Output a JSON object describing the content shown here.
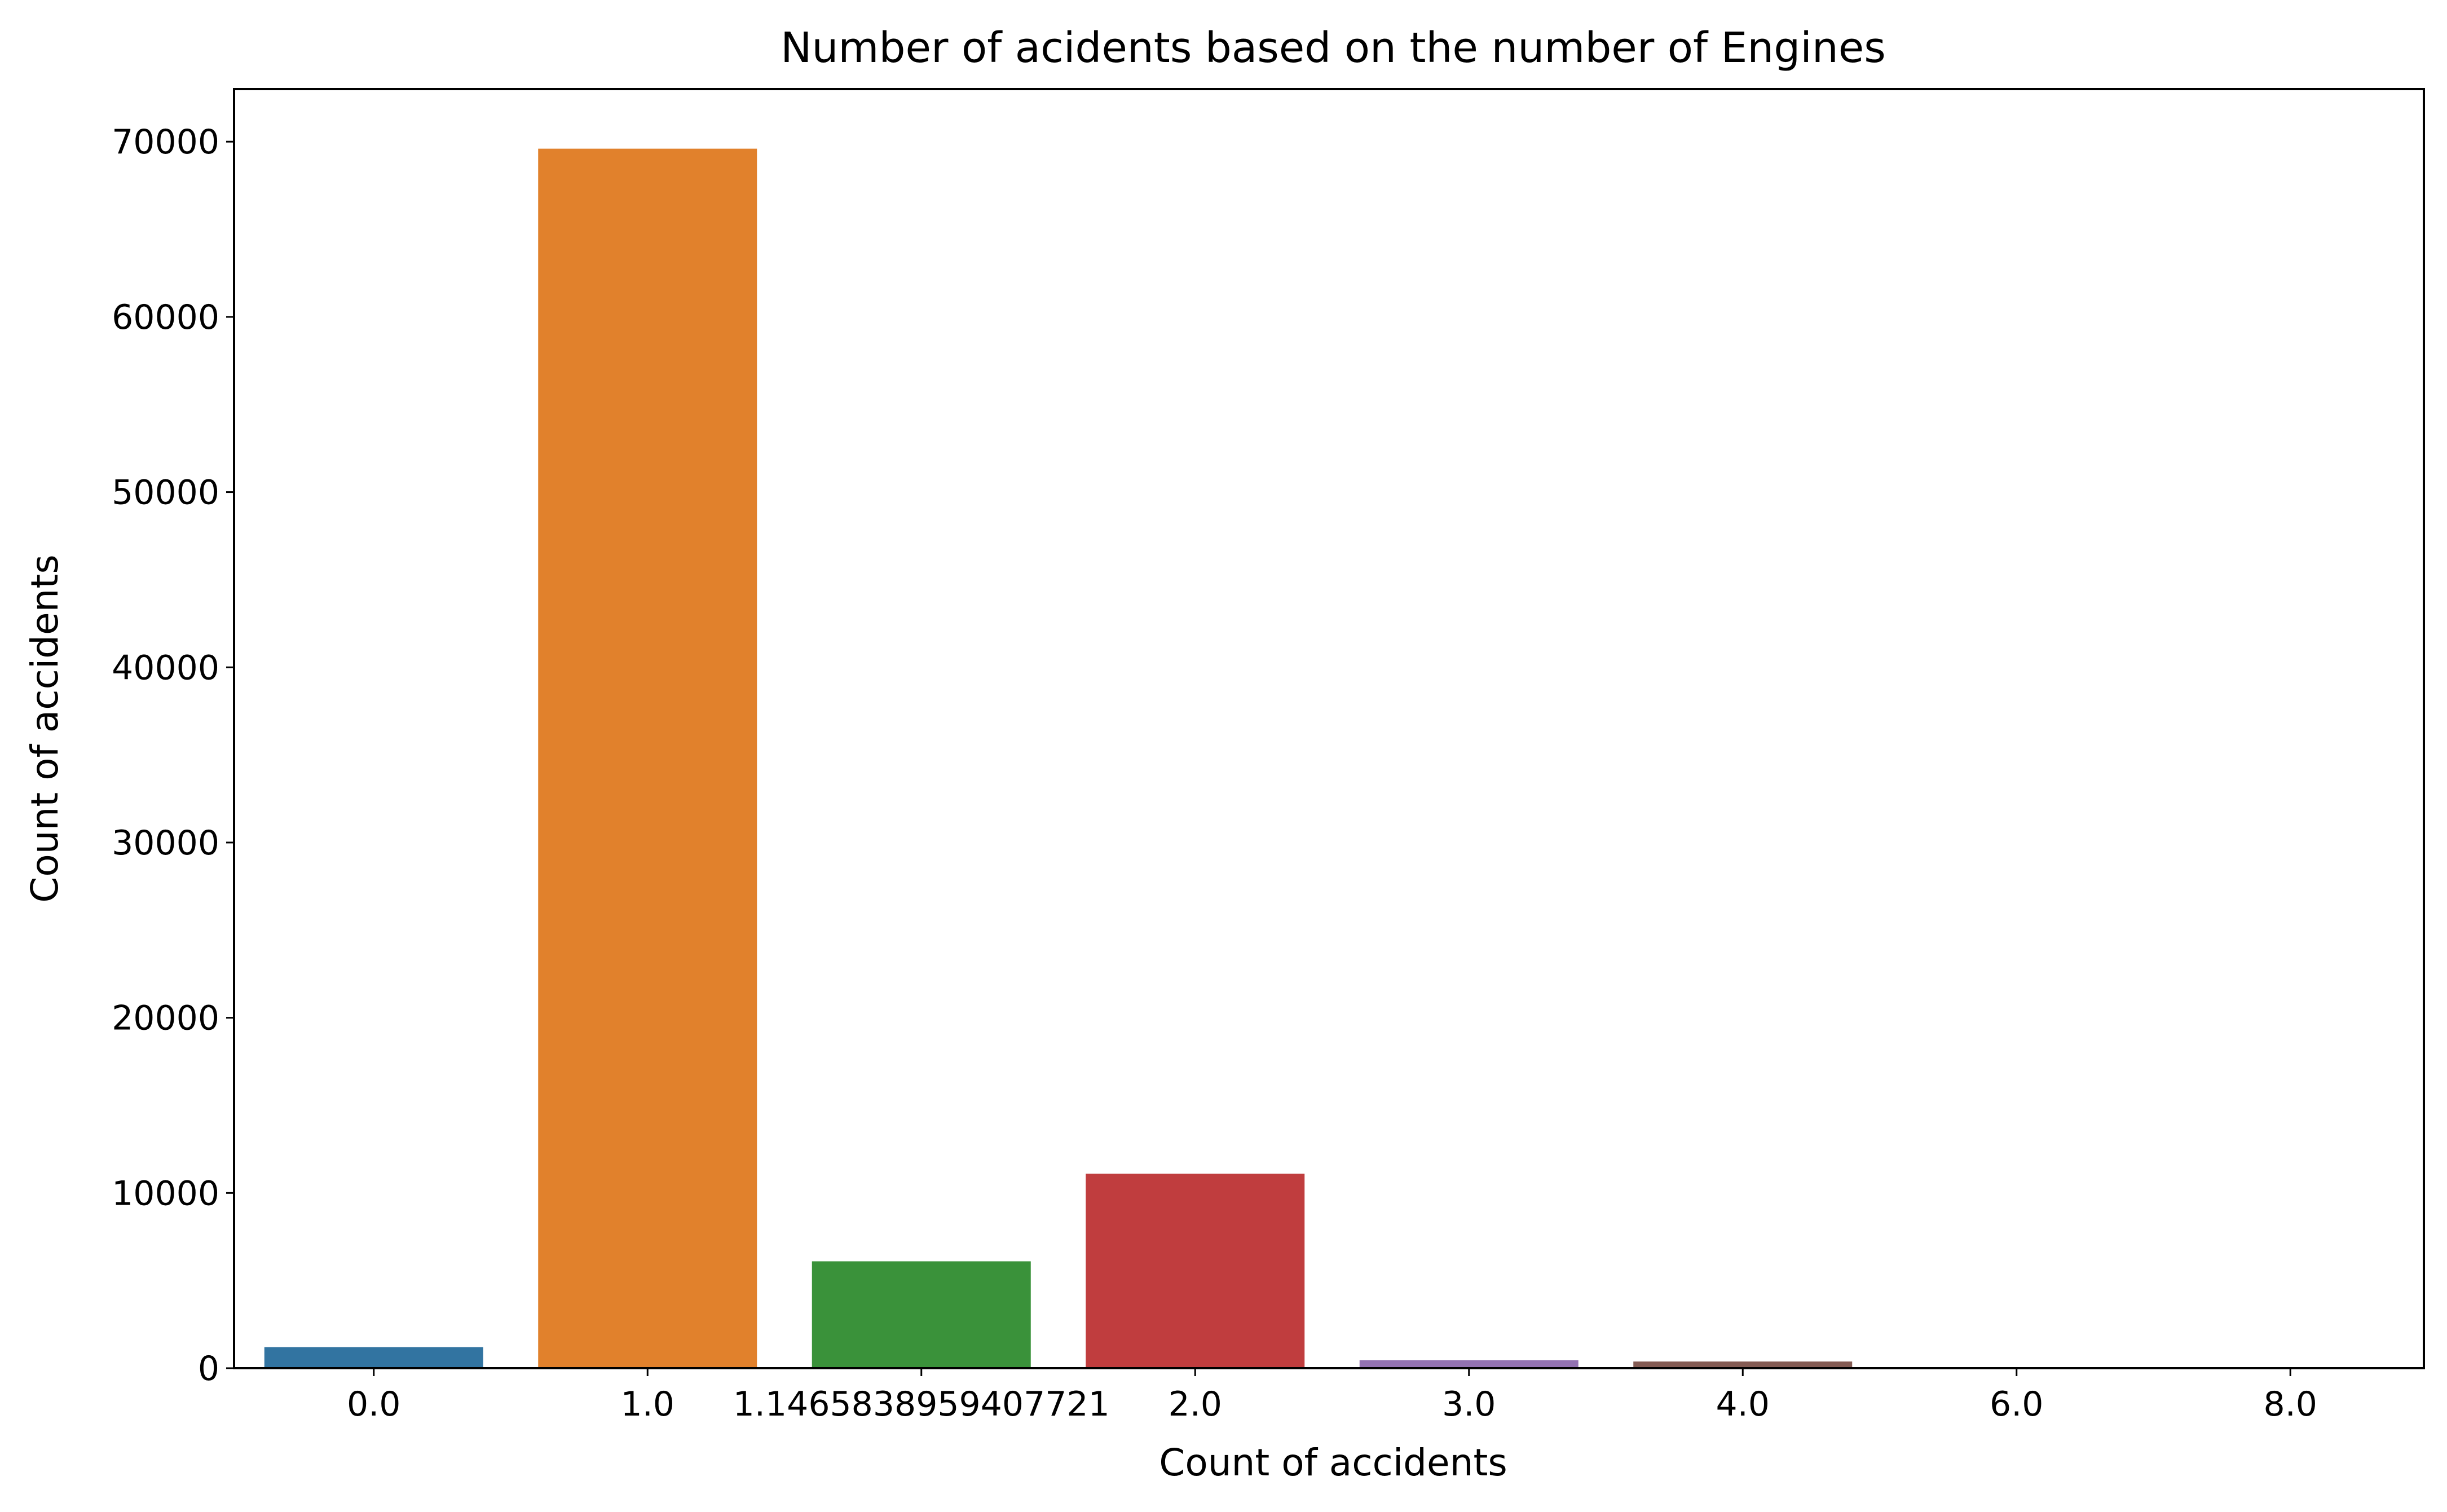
{
  "chart_data": {
    "type": "bar",
    "title": "Number of acidents based on the number of Engines",
    "xlabel": "Count of accidents",
    "ylabel": "Count of accidents",
    "categories": [
      "0.0",
      "1.0",
      "1.1465838959407721",
      "2.0",
      "3.0",
      "4.0",
      "6.0",
      "8.0"
    ],
    "values": [
      1200,
      69600,
      6100,
      11100,
      450,
      380,
      5,
      5
    ],
    "colors": [
      "#3274a1",
      "#e1812c",
      "#3a923a",
      "#c03d3e",
      "#9372b2",
      "#845b53",
      "#d684bd",
      "#7f7f7f"
    ],
    "ylim": [
      0,
      73000
    ],
    "yticks": [
      "0",
      "10000",
      "20000",
      "30000",
      "40000",
      "50000",
      "60000",
      "70000"
    ],
    "grid": false,
    "legend": "none"
  }
}
